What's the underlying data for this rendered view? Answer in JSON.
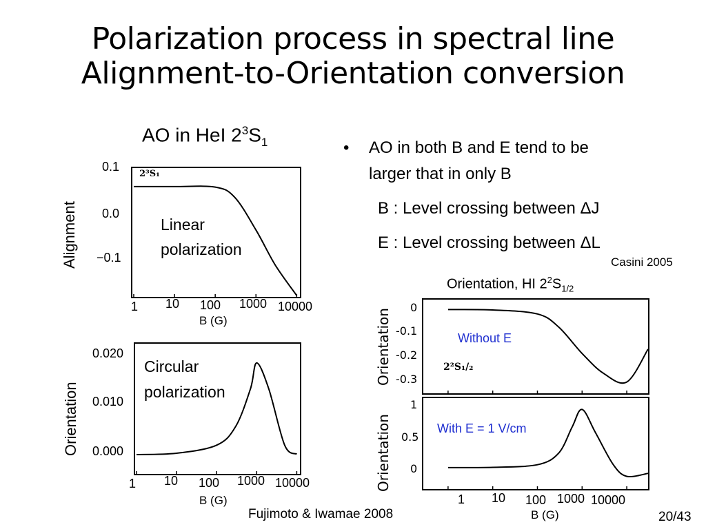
{
  "slide": {
    "title_line1": "Polarization process in spectral line",
    "title_line2": "Alignment-to-Orientation conversion",
    "left_heading": {
      "text": "AO in HeI 2",
      "sup": "3",
      "main": "S",
      "sub": "1"
    },
    "bullets": [
      "AO in both B and E tend to be",
      "larger that in only B"
    ],
    "sub_lines": [
      "B : Level crossing between ΔJ",
      "E : Level crossing between ΔL"
    ],
    "citation_casini": "Casini 2005",
    "citation_fujimoto": "Fujimoto & Iwamae 2008",
    "page_number": "20/43",
    "right_heading": {
      "text": "Orientation, HI 2",
      "sup": "2",
      "main": "S",
      "sub": "1/2"
    }
  },
  "plots": {
    "alignment": {
      "ylabel": "Alignment",
      "yticks": [
        "0.1",
        "0.0",
        "−0.1"
      ],
      "xticks": [
        "1",
        "10",
        "100",
        "1000",
        "10000"
      ],
      "xlabel": "B (G)",
      "annotation_line1": "Linear",
      "annotation_line2": "polarization",
      "tag": "2³S₁"
    },
    "orientation_left": {
      "ylabel": "Orientation",
      "yticks": [
        "0.020",
        "0.010",
        "0.000"
      ],
      "xticks": [
        "1",
        "10",
        "100",
        "1000",
        "10000"
      ],
      "xlabel": "B (G)",
      "annotation_line1": "Circular",
      "annotation_line2": "polarization"
    },
    "orientation_top_right": {
      "ylabel": "Orientation",
      "yticks": [
        "0",
        "-0.1",
        "-0.2",
        "-0.3"
      ],
      "annotation": "Without E",
      "tag": "2²S₁/₂"
    },
    "orientation_bottom_right": {
      "ylabel": "Orientation",
      "yticks": [
        "1",
        "0.5",
        "0"
      ],
      "xticks": [
        "1",
        "10",
        "100",
        "1000",
        "10000"
      ],
      "xlabel": "B (G)",
      "annotation": "With E = 1 V/cm"
    }
  },
  "chart_data": [
    {
      "type": "line",
      "name_ref": "alignment",
      "x": [
        1,
        10,
        100,
        300,
        1000,
        3000,
        10000
      ],
      "y": [
        0.066,
        0.066,
        0.065,
        0.045,
        -0.02,
        -0.09,
        -0.15
      ],
      "ylim": [
        -0.15,
        0.1
      ],
      "xscale": "log"
    },
    {
      "type": "line",
      "name_ref": "orientation_left",
      "x": [
        1,
        10,
        100,
        300,
        700,
        1000,
        2000,
        5000,
        10000
      ],
      "y": [
        0.0,
        0.0003,
        0.002,
        0.006,
        0.014,
        0.0195,
        0.014,
        0.002,
        0.0001
      ],
      "ylim": [
        0.0,
        0.023
      ],
      "xscale": "log"
    },
    {
      "type": "line",
      "name_ref": "orientation_top_right",
      "x": [
        1,
        10,
        100,
        300,
        1000,
        3000,
        10000,
        30000
      ],
      "y": [
        0.0,
        -0.002,
        -0.02,
        -0.08,
        -0.2,
        -0.29,
        -0.33,
        -0.18
      ],
      "ylim": [
        -0.35,
        0.02
      ],
      "xscale": "log"
    },
    {
      "type": "line",
      "name_ref": "orientation_bottom_right",
      "x": [
        1,
        10,
        100,
        300,
        600,
        1000,
        2000,
        5000,
        10000,
        30000
      ],
      "y": [
        0.0,
        0.005,
        0.05,
        0.25,
        0.7,
        1.0,
        0.6,
        0.05,
        -0.15,
        -0.1
      ],
      "ylim": [
        -0.25,
        1.1
      ],
      "xscale": "log"
    }
  ]
}
